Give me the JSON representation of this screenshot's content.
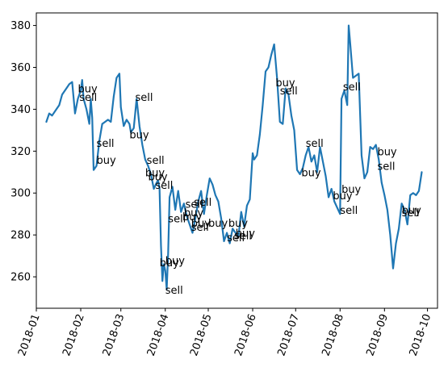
{
  "chart_data": {
    "type": "line",
    "title": "",
    "xlabel": "",
    "ylabel": "",
    "grid": false,
    "legend": "none",
    "line_color": "#1f77b4",
    "xlim": [
      "2018-01-01",
      "2018-10-08"
    ],
    "ylim": [
      245,
      386
    ],
    "x_ticks": [
      "2018-01",
      "2018-02",
      "2018-03",
      "2018-04",
      "2018-05",
      "2018-06",
      "2018-07",
      "2018-08",
      "2018-09",
      "2018-10"
    ],
    "y_ticks": [
      260,
      280,
      300,
      320,
      340,
      360,
      380
    ],
    "series": [
      {
        "points": [
          [
            "2018-01-08",
            334
          ],
          [
            "2018-01-10",
            338
          ],
          [
            "2018-01-12",
            337
          ],
          [
            "2018-01-15",
            340
          ],
          [
            "2018-01-17",
            342
          ],
          [
            "2018-01-19",
            347
          ],
          [
            "2018-01-22",
            350
          ],
          [
            "2018-01-24",
            352
          ],
          [
            "2018-01-26",
            353
          ],
          [
            "2018-01-28",
            338
          ],
          [
            "2018-01-30",
            345
          ],
          [
            "2018-02-01",
            349
          ],
          [
            "2018-02-02",
            354
          ],
          [
            "2018-02-03",
            345
          ],
          [
            "2018-02-05",
            340
          ],
          [
            "2018-02-07",
            333
          ],
          [
            "2018-02-08",
            345
          ],
          [
            "2018-02-09",
            336
          ],
          [
            "2018-02-10",
            311
          ],
          [
            "2018-02-12",
            313
          ],
          [
            "2018-02-14",
            325
          ],
          [
            "2018-02-16",
            333
          ],
          [
            "2018-02-20",
            335
          ],
          [
            "2018-02-22",
            334
          ],
          [
            "2018-02-24",
            346
          ],
          [
            "2018-02-26",
            355
          ],
          [
            "2018-02-28",
            357
          ],
          [
            "2018-03-01",
            341
          ],
          [
            "2018-03-03",
            332
          ],
          [
            "2018-03-05",
            335
          ],
          [
            "2018-03-07",
            333
          ],
          [
            "2018-03-08",
            329
          ],
          [
            "2018-03-10",
            331
          ],
          [
            "2018-03-12",
            345
          ],
          [
            "2018-03-14",
            332
          ],
          [
            "2018-03-16",
            323
          ],
          [
            "2018-03-18",
            316
          ],
          [
            "2018-03-20",
            313
          ],
          [
            "2018-03-22",
            309
          ],
          [
            "2018-03-24",
            302
          ],
          [
            "2018-03-26",
            305
          ],
          [
            "2018-03-27",
            306
          ],
          [
            "2018-03-28",
            302
          ],
          [
            "2018-03-29",
            275
          ],
          [
            "2018-03-30",
            258
          ],
          [
            "2018-03-31",
            266
          ],
          [
            "2018-04-01",
            263
          ],
          [
            "2018-04-02",
            254
          ],
          [
            "2018-04-03",
            271
          ],
          [
            "2018-04-04",
            298
          ],
          [
            "2018-04-06",
            303
          ],
          [
            "2018-04-08",
            292
          ],
          [
            "2018-04-10",
            301
          ],
          [
            "2018-04-12",
            291
          ],
          [
            "2018-04-14",
            295
          ],
          [
            "2018-04-16",
            289
          ],
          [
            "2018-04-18",
            285
          ],
          [
            "2018-04-20",
            281
          ],
          [
            "2018-04-22",
            288
          ],
          [
            "2018-04-24",
            296
          ],
          [
            "2018-04-26",
            301
          ],
          [
            "2018-04-28",
            290
          ],
          [
            "2018-04-30",
            299
          ],
          [
            "2018-05-02",
            307
          ],
          [
            "2018-05-04",
            304
          ],
          [
            "2018-05-06",
            299
          ],
          [
            "2018-05-08",
            296
          ],
          [
            "2018-05-10",
            288
          ],
          [
            "2018-05-12",
            277
          ],
          [
            "2018-05-14",
            281
          ],
          [
            "2018-05-16",
            276
          ],
          [
            "2018-05-18",
            283
          ],
          [
            "2018-05-20",
            281
          ],
          [
            "2018-05-22",
            279
          ],
          [
            "2018-05-24",
            291
          ],
          [
            "2018-05-26",
            284
          ],
          [
            "2018-05-28",
            294
          ],
          [
            "2018-05-30",
            297
          ],
          [
            "2018-06-01",
            319
          ],
          [
            "2018-06-02",
            316
          ],
          [
            "2018-06-04",
            318
          ],
          [
            "2018-06-06",
            328
          ],
          [
            "2018-06-08",
            342
          ],
          [
            "2018-06-10",
            358
          ],
          [
            "2018-06-12",
            360
          ],
          [
            "2018-06-14",
            366
          ],
          [
            "2018-06-16",
            371
          ],
          [
            "2018-06-18",
            355
          ],
          [
            "2018-06-20",
            334
          ],
          [
            "2018-06-22",
            333
          ],
          [
            "2018-06-24",
            350
          ],
          [
            "2018-06-26",
            347
          ],
          [
            "2018-06-28",
            337
          ],
          [
            "2018-06-30",
            330
          ],
          [
            "2018-07-02",
            311
          ],
          [
            "2018-07-04",
            309
          ],
          [
            "2018-07-06",
            312
          ],
          [
            "2018-07-08",
            318
          ],
          [
            "2018-07-10",
            322
          ],
          [
            "2018-07-12",
            315
          ],
          [
            "2018-07-14",
            318
          ],
          [
            "2018-07-16",
            310
          ],
          [
            "2018-07-18",
            322
          ],
          [
            "2018-07-20",
            315
          ],
          [
            "2018-07-22",
            308
          ],
          [
            "2018-07-24",
            298
          ],
          [
            "2018-07-26",
            302
          ],
          [
            "2018-07-28",
            296
          ],
          [
            "2018-07-30",
            293
          ],
          [
            "2018-08-01",
            290
          ],
          [
            "2018-08-02",
            345
          ],
          [
            "2018-08-04",
            349
          ],
          [
            "2018-08-06",
            342
          ],
          [
            "2018-08-07",
            380
          ],
          [
            "2018-08-08",
            372
          ],
          [
            "2018-08-10",
            355
          ],
          [
            "2018-08-12",
            356
          ],
          [
            "2018-08-14",
            357
          ],
          [
            "2018-08-16",
            318
          ],
          [
            "2018-08-18",
            307
          ],
          [
            "2018-08-20",
            310
          ],
          [
            "2018-08-22",
            322
          ],
          [
            "2018-08-24",
            321
          ],
          [
            "2018-08-26",
            323
          ],
          [
            "2018-08-28",
            316
          ],
          [
            "2018-08-30",
            305
          ],
          [
            "2018-09-01",
            299
          ],
          [
            "2018-09-03",
            292
          ],
          [
            "2018-09-05",
            280
          ],
          [
            "2018-09-07",
            264
          ],
          [
            "2018-09-09",
            276
          ],
          [
            "2018-09-11",
            283
          ],
          [
            "2018-09-13",
            295
          ],
          [
            "2018-09-15",
            292
          ],
          [
            "2018-09-17",
            285
          ],
          [
            "2018-09-19",
            299
          ],
          [
            "2018-09-21",
            300
          ],
          [
            "2018-09-23",
            299
          ],
          [
            "2018-09-25",
            301
          ],
          [
            "2018-09-27",
            310
          ]
        ]
      }
    ],
    "annotations": [
      {
        "text": "buy",
        "x": "2018-01-30",
        "y": 348
      },
      {
        "text": "sell",
        "x": "2018-01-31",
        "y": 344
      },
      {
        "text": "sell",
        "x": "2018-02-12",
        "y": 322
      },
      {
        "text": "buy",
        "x": "2018-02-12",
        "y": 314
      },
      {
        "text": "sell",
        "x": "2018-03-11",
        "y": 344
      },
      {
        "text": "buy",
        "x": "2018-03-07",
        "y": 326
      },
      {
        "text": "sell",
        "x": "2018-03-19",
        "y": 314
      },
      {
        "text": "buy",
        "x": "2018-03-18",
        "y": 308
      },
      {
        "text": "buy",
        "x": "2018-03-20",
        "y": 306
      },
      {
        "text": "sell",
        "x": "2018-03-25",
        "y": 302
      },
      {
        "text": "sell",
        "x": "2018-04-03",
        "y": 286
      },
      {
        "text": "buy",
        "x": "2018-03-28",
        "y": 265
      },
      {
        "text": "buy",
        "x": "2018-04-01",
        "y": 266
      },
      {
        "text": "sell",
        "x": "2018-04-01",
        "y": 252
      },
      {
        "text": "sell",
        "x": "2018-04-15",
        "y": 293
      },
      {
        "text": "sell",
        "x": "2018-04-21",
        "y": 294
      },
      {
        "text": "buy",
        "x": "2018-04-14",
        "y": 289
      },
      {
        "text": "buy",
        "x": "2018-04-13",
        "y": 287
      },
      {
        "text": "buy",
        "x": "2018-04-19",
        "y": 284
      },
      {
        "text": "sell",
        "x": "2018-04-19",
        "y": 282
      },
      {
        "text": "buy",
        "x": "2018-05-01",
        "y": 284
      },
      {
        "text": "buy",
        "x": "2018-05-15",
        "y": 284
      },
      {
        "text": "sell",
        "x": "2018-05-14",
        "y": 277
      },
      {
        "text": "buy",
        "x": "2018-05-20",
        "y": 279
      },
      {
        "text": "sell",
        "x": "2018-05-19",
        "y": 278
      },
      {
        "text": "buy",
        "x": "2018-06-17",
        "y": 351
      },
      {
        "text": "sell",
        "x": "2018-06-20",
        "y": 347
      },
      {
        "text": "sell",
        "x": "2018-07-08",
        "y": 322
      },
      {
        "text": "buy",
        "x": "2018-07-05",
        "y": 308
      },
      {
        "text": "buy",
        "x": "2018-07-27",
        "y": 297
      },
      {
        "text": "buy",
        "x": "2018-08-02",
        "y": 300
      },
      {
        "text": "sell",
        "x": "2018-08-01",
        "y": 290
      },
      {
        "text": "sell",
        "x": "2018-08-03",
        "y": 349
      },
      {
        "text": "buy",
        "x": "2018-08-27",
        "y": 318
      },
      {
        "text": "sell",
        "x": "2018-08-27",
        "y": 311
      },
      {
        "text": "buy",
        "x": "2018-09-13",
        "y": 290
      },
      {
        "text": "sell",
        "x": "2018-09-13",
        "y": 289
      }
    ]
  }
}
